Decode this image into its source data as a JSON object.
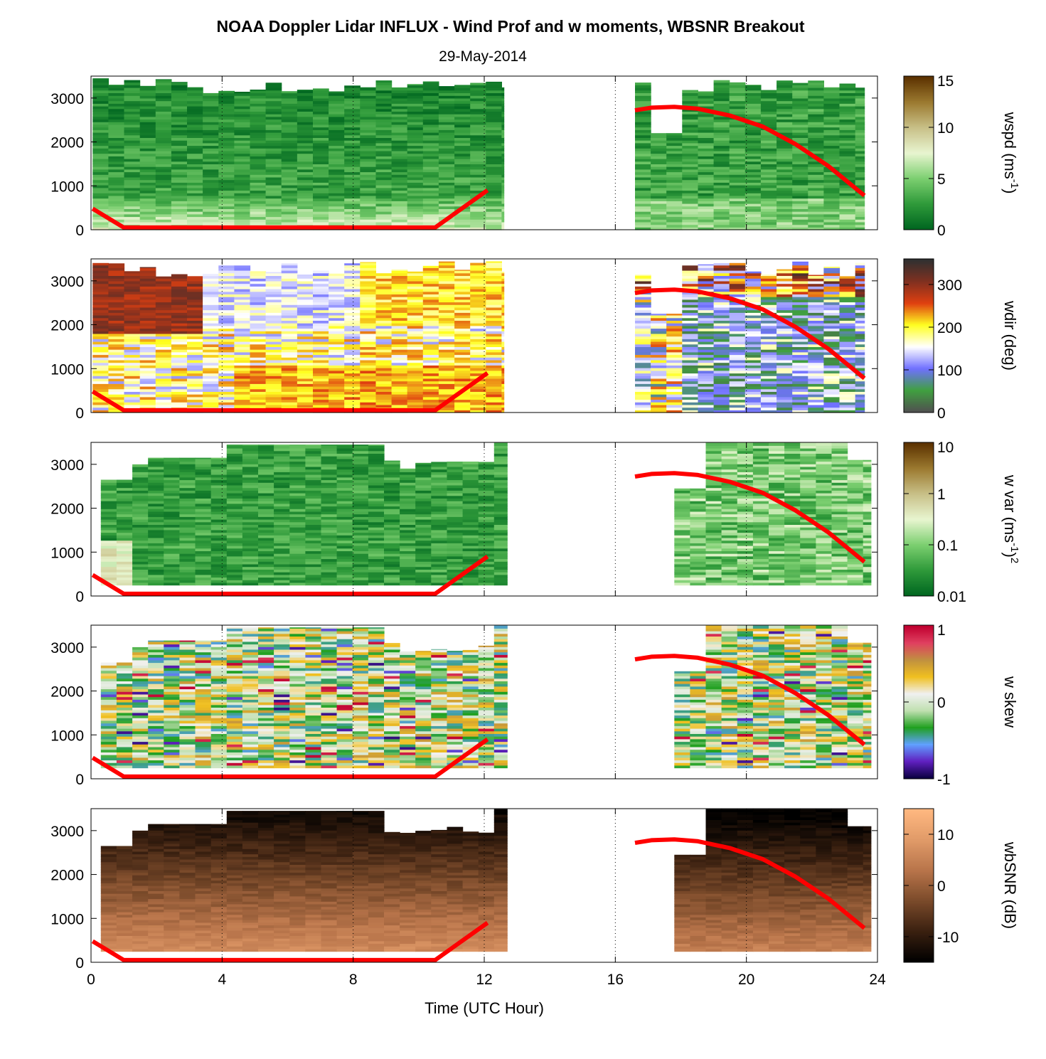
{
  "header": {
    "title": "NOAA Doppler Lidar INFLUX - Wind Prof and w moments, WBSNR Breakout",
    "date": "29-May-2014"
  },
  "chart_data": {
    "type": "heatmap",
    "xlabel": "Time (UTC Hour)",
    "xlim": [
      0,
      24
    ],
    "x_ticks": [
      0,
      4,
      8,
      12,
      16,
      20,
      24
    ],
    "ylim": [
      0,
      3500
    ],
    "y_ticks": [
      0,
      1000,
      2000,
      3000
    ],
    "grid": "dotted vertical lines at 4, 8, 12, 16, 20",
    "overlay_line": {
      "name": "boundary layer height",
      "color": "#ff0000",
      "segments": [
        {
          "x": [
            0.05,
            1.0,
            10.5,
            12.1
          ],
          "y": [
            480,
            50,
            50,
            900
          ]
        },
        {
          "x": [
            16.6,
            17.1,
            17.8,
            18.5,
            19.5,
            20.5,
            21.5,
            22.5,
            23.6
          ],
          "y": [
            2720,
            2780,
            2800,
            2760,
            2600,
            2350,
            1950,
            1450,
            780
          ]
        }
      ]
    },
    "panels": [
      {
        "id": "wspd",
        "colorbar_label": "wspd (ms",
        "colorbar_sup": "-1",
        "colorbar_tail": ")",
        "colorbar_ticks": [
          "0",
          "5",
          "10",
          "15"
        ],
        "colormap": [
          "#006620",
          "#2f9a3a",
          "#7ccf70",
          "#e8f5d0",
          "#c8c088",
          "#9c7a30",
          "#5c3200"
        ],
        "data_segments": [
          {
            "x_start": 0.05,
            "x_end": 12.6,
            "y_min": 0,
            "y_max": 3450
          },
          {
            "x_start": 16.6,
            "x_end": 23.6,
            "y_min": 0,
            "y_max": 3450
          }
        ]
      },
      {
        "id": "wdir",
        "colorbar_label": "wdir (deg)",
        "colorbar_sup": "",
        "colorbar_tail": "",
        "colorbar_ticks": [
          "0",
          "100",
          "200",
          "300"
        ],
        "colormap": [
          "#505050",
          "#40a040",
          "#7070ff",
          "#ffffff",
          "#ffff20",
          "#e04010",
          "#803020",
          "#303030"
        ],
        "data_segments": [
          {
            "x_start": 0.05,
            "x_end": 12.6,
            "y_min": 0,
            "y_max": 3450
          },
          {
            "x_start": 16.6,
            "x_end": 23.6,
            "y_min": 0,
            "y_max": 3450
          }
        ]
      },
      {
        "id": "wvar",
        "colorbar_label": "w var (ms",
        "colorbar_sup": "-1",
        "colorbar_tail": ")",
        "colorbar_sup2": "2",
        "colorbar_ticks": [
          "0.01",
          "0.1",
          "1",
          "10"
        ],
        "colorbar_scale": "log",
        "colormap": [
          "#006620",
          "#2f9a3a",
          "#7ccf70",
          "#e8f5d0",
          "#c8c088",
          "#9c7a30",
          "#5c3200"
        ],
        "data_segments": [
          {
            "x_start": 0.3,
            "x_end": 12.7,
            "y_min": 250,
            "y_max": 3500
          },
          {
            "x_start": 17.8,
            "x_end": 23.8,
            "y_min": 250,
            "y_max": 3500
          }
        ]
      },
      {
        "id": "wskew",
        "colorbar_label": "w skew",
        "colorbar_sup": "",
        "colorbar_tail": "",
        "colorbar_ticks": [
          "-1",
          "0",
          "1"
        ],
        "colormap": [
          "#0a0040",
          "#6020c0",
          "#60a0ff",
          "#20a020",
          "#c0e0b0",
          "#f0f0f0",
          "#f0c020",
          "#c09040",
          "#e04060",
          "#c00030"
        ],
        "data_segments": [
          {
            "x_start": 0.3,
            "x_end": 12.7,
            "y_min": 250,
            "y_max": 3500
          },
          {
            "x_start": 17.8,
            "x_end": 23.8,
            "y_min": 250,
            "y_max": 3500
          }
        ]
      },
      {
        "id": "wbsnr",
        "colorbar_label": "wbSNR (dB)",
        "colorbar_sup": "",
        "colorbar_tail": "",
        "colorbar_ticks": [
          "-10",
          "0",
          "10"
        ],
        "colormap": [
          "#000000",
          "#3a2010",
          "#7a4a2a",
          "#b8744a",
          "#e09a68",
          "#ffb880"
        ],
        "data_segments": [
          {
            "x_start": 0.3,
            "x_end": 12.7,
            "y_min": 250,
            "y_max": 3500
          },
          {
            "x_start": 17.8,
            "x_end": 23.8,
            "y_min": 250,
            "y_max": 3500
          }
        ]
      }
    ]
  }
}
